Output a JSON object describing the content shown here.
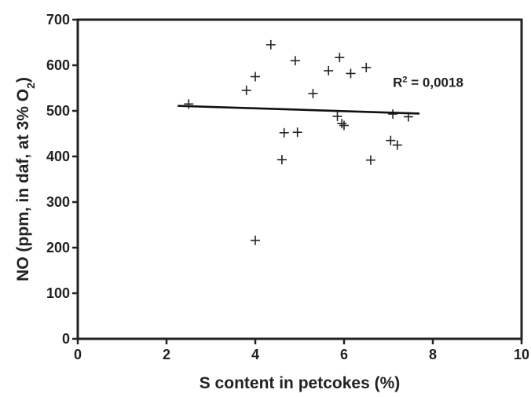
{
  "chart_data": {
    "type": "scatter",
    "xlabel": "S content in petcokes (%)",
    "ylabel_main": "NO (ppm, in daf, at 3% O",
    "ylabel_sub": "2",
    "ylabel_close": ")",
    "xlim": [
      0,
      10
    ],
    "ylim": [
      0,
      700
    ],
    "x_ticks": [
      "0",
      "2",
      "4",
      "6",
      "8",
      "10"
    ],
    "y_ticks": [
      "0",
      "100",
      "200",
      "300",
      "400",
      "500",
      "600",
      "700"
    ],
    "grid": false,
    "marker": "plus",
    "points": [
      {
        "x": 2.5,
        "y": 515
      },
      {
        "x": 3.8,
        "y": 545
      },
      {
        "x": 4.0,
        "y": 575
      },
      {
        "x": 4.0,
        "y": 216
      },
      {
        "x": 4.35,
        "y": 645
      },
      {
        "x": 4.6,
        "y": 393
      },
      {
        "x": 4.65,
        "y": 452
      },
      {
        "x": 4.9,
        "y": 610
      },
      {
        "x": 4.95,
        "y": 453
      },
      {
        "x": 5.3,
        "y": 538
      },
      {
        "x": 5.65,
        "y": 588
      },
      {
        "x": 5.85,
        "y": 488
      },
      {
        "x": 5.9,
        "y": 617
      },
      {
        "x": 5.95,
        "y": 472
      },
      {
        "x": 6.0,
        "y": 468
      },
      {
        "x": 6.15,
        "y": 582
      },
      {
        "x": 6.5,
        "y": 595
      },
      {
        "x": 6.6,
        "y": 392
      },
      {
        "x": 7.05,
        "y": 435
      },
      {
        "x": 7.1,
        "y": 493
      },
      {
        "x": 7.2,
        "y": 425
      },
      {
        "x": 7.45,
        "y": 487
      }
    ],
    "trendline": {
      "x": [
        2.25,
        7.7
      ],
      "y": [
        511,
        494
      ]
    },
    "annotation": {
      "text": "R",
      "sup": "2",
      "rest": " = 0,0018",
      "x": 7.1,
      "y": 553
    }
  }
}
